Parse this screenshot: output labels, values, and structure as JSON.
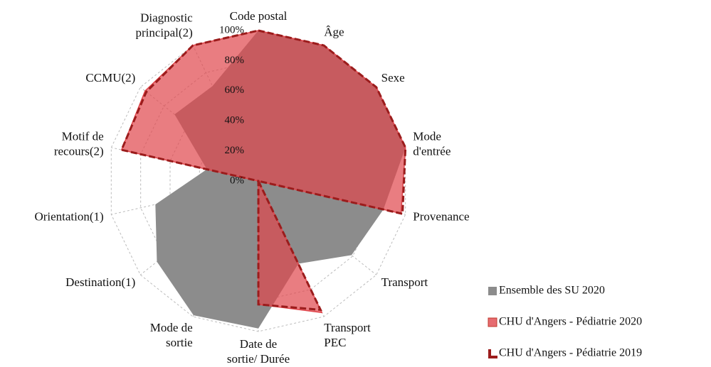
{
  "chart_data": {
    "type": "radar",
    "categories": [
      [
        "Code postal"
      ],
      [
        "Âge"
      ],
      [
        "Sexe"
      ],
      [
        "Mode",
        "d'entrée"
      ],
      [
        "Provenance"
      ],
      [
        "Transport"
      ],
      [
        "Transport",
        "PEC"
      ],
      [
        "Date de",
        "sortie/ Durée"
      ],
      [
        "Mode de",
        "sortie"
      ],
      [
        "Destination(1)"
      ],
      [
        "Orientation(1)"
      ],
      [
        "Motif de",
        "recours(2)"
      ],
      [
        "CCMU(2)"
      ],
      [
        "Diagnostic",
        "principal(2)"
      ]
    ],
    "rlim": [
      0,
      100
    ],
    "rticks": [
      {
        "value": 0,
        "label": "0%"
      },
      {
        "value": 20,
        "label": "20%"
      },
      {
        "value": 40,
        "label": "40%"
      },
      {
        "value": 60,
        "label": "60%"
      },
      {
        "value": 80,
        "label": "80%"
      },
      {
        "value": 100,
        "label": "100%"
      }
    ],
    "grid": true,
    "legend": "right",
    "series": [
      {
        "name": "Ensemble des SU 2020",
        "color": "#8c8c8c",
        "values": [
          100,
          100,
          100,
          100,
          85,
          79,
          61,
          98,
          99,
          86,
          70,
          35,
          71,
          70
        ]
      },
      {
        "name": "CHU d'Angers - Pédiatrie 2020",
        "color": "#e0464c",
        "values": [
          100,
          100,
          100,
          100,
          97,
          0,
          97,
          82,
          0,
          0,
          0,
          93,
          96,
          100
        ]
      },
      {
        "name": "CHU d'Angers - Pédiatrie 2019",
        "color": "#9b1c1c",
        "values": [
          100,
          100,
          100,
          100,
          98,
          0,
          95,
          82,
          0,
          0,
          0,
          93,
          95,
          100
        ]
      }
    ]
  }
}
